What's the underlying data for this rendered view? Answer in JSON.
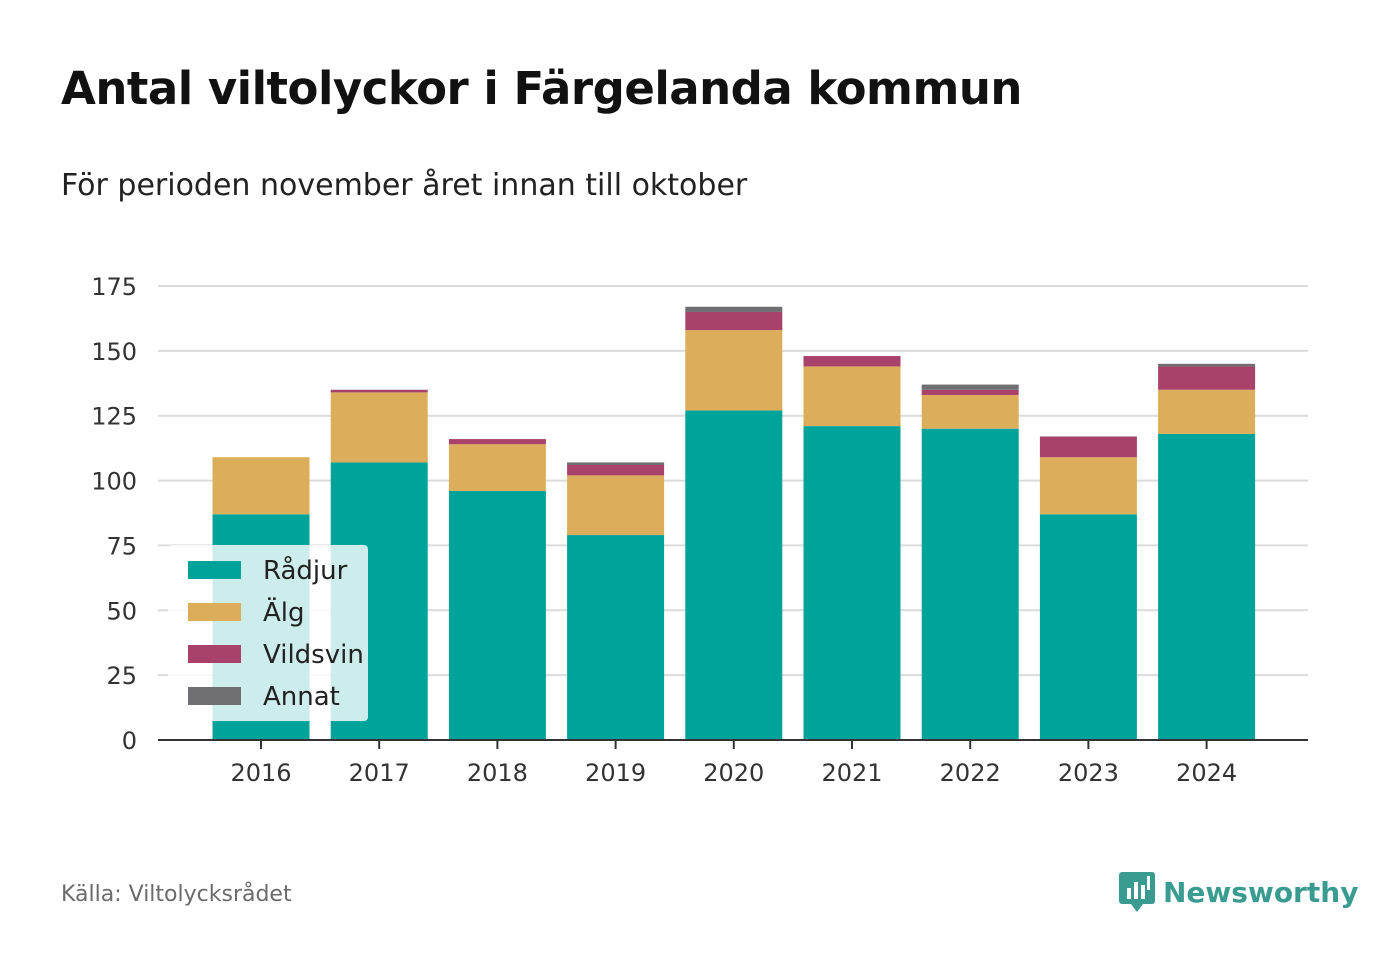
{
  "title": "Antal viltolyckor i Färgelanda kommun",
  "subtitle": "För perioden november året innan till oktober",
  "source": "Källa: Viltolycksrådet",
  "brand": {
    "name": "Newsworthy",
    "icon": "newsworthy-logo-icon",
    "color": "#3a9c91"
  },
  "chart_data": {
    "type": "bar",
    "stacked": true,
    "categories": [
      "2016",
      "2017",
      "2018",
      "2019",
      "2020",
      "2021",
      "2022",
      "2023",
      "2024"
    ],
    "series": [
      {
        "name": "Rådjur",
        "color": "#00a39a",
        "values": [
          87,
          107,
          96,
          79,
          127,
          121,
          120,
          87,
          118
        ]
      },
      {
        "name": "Älg",
        "color": "#dcad5a",
        "values": [
          22,
          27,
          18,
          23,
          31,
          23,
          13,
          22,
          17
        ]
      },
      {
        "name": "Vildsvin",
        "color": "#a8426a",
        "values": [
          0,
          1,
          2,
          4,
          7,
          4,
          2,
          8,
          9
        ]
      },
      {
        "name": "Annat",
        "color": "#6e6e73",
        "values": [
          0,
          0,
          0,
          1,
          2,
          0,
          2,
          0,
          1
        ]
      }
    ],
    "yticks": [
      0,
      25,
      50,
      75,
      100,
      125,
      150,
      175
    ],
    "ylim": [
      0,
      175
    ],
    "xlabel": "",
    "ylabel": "",
    "grid": true,
    "legend_position": "bottom-left"
  }
}
